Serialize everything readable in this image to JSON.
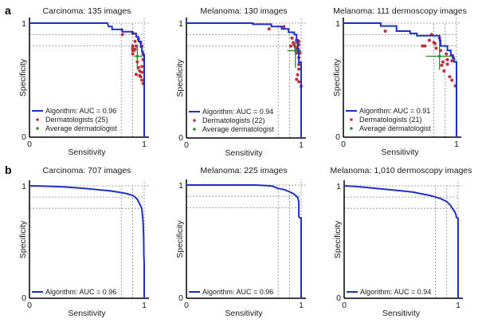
{
  "figure": {
    "panel_labels": [
      "a",
      "b"
    ],
    "colors": {
      "algorithm": "#1f30c8",
      "dermatologist": "#c0303a",
      "average": "#2a8a30",
      "reference": "#8a8a8a",
      "axis": "#000000"
    }
  },
  "chart_data": [
    {
      "type": "line",
      "row": "a",
      "title": "Carcinoma: 135 images",
      "xlabel": "Sensitivity",
      "ylabel": "Specificity",
      "xlim": [
        0,
        1
      ],
      "ylim": [
        0,
        1
      ],
      "xticks": [
        "0",
        "1"
      ],
      "yticks": [
        "0",
        "1"
      ],
      "grid": false,
      "reference_lines": {
        "sensitivity": [
          0.8,
          0.9,
          1.0
        ],
        "specificity": [
          0.8,
          0.9,
          1.0
        ]
      },
      "legend_position": "bottom-left",
      "legend": [
        "Algorithm: AUC = 0.96",
        "Dermatologists (25)",
        "Average dermatologist"
      ],
      "algorithm": {
        "name": "Algorithm: AUC = 0.96",
        "auc": 0.96,
        "points": [
          [
            0,
            1
          ],
          [
            0.68,
            1
          ],
          [
            0.69,
            0.97
          ],
          [
            0.72,
            0.97
          ],
          [
            0.72,
            0.945
          ],
          [
            0.81,
            0.945
          ],
          [
            0.81,
            0.925
          ],
          [
            0.9,
            0.925
          ],
          [
            0.9,
            0.91
          ],
          [
            0.93,
            0.91
          ],
          [
            0.93,
            0.88
          ],
          [
            0.95,
            0.88
          ],
          [
            0.95,
            0.84
          ],
          [
            0.97,
            0.84
          ],
          [
            0.97,
            0.79
          ],
          [
            0.98,
            0.79
          ],
          [
            0.98,
            0.75
          ],
          [
            0.99,
            0.75
          ],
          [
            0.99,
            0.72
          ],
          [
            1.0,
            0.72
          ],
          [
            1.0,
            0
          ]
        ]
      },
      "dermatologists": {
        "name": "Dermatologists (25)",
        "points": [
          [
            0.81,
            0.9
          ],
          [
            0.9,
            0.91
          ],
          [
            0.9,
            0.8
          ],
          [
            0.9,
            0.78
          ],
          [
            0.91,
            0.76
          ],
          [
            0.9,
            0.73
          ],
          [
            0.98,
            0.8
          ],
          [
            0.99,
            0.73
          ],
          [
            0.94,
            0.66
          ],
          [
            0.99,
            0.68
          ],
          [
            0.98,
            0.62
          ],
          [
            0.98,
            0.57
          ],
          [
            0.95,
            0.61
          ],
          [
            0.96,
            0.54
          ],
          [
            0.97,
            0.53
          ],
          [
            0.93,
            0.55
          ],
          [
            0.98,
            0.5
          ],
          [
            0.99,
            0.47
          ],
          [
            0.9,
            0.76
          ],
          [
            0.92,
            0.77
          ],
          [
            0.92,
            0.84
          ],
          [
            0.95,
            0.86
          ],
          [
            0.97,
            0.83
          ],
          [
            0.93,
            0.8
          ],
          [
            0.96,
            0.58
          ]
        ]
      },
      "average": {
        "name": "Average dermatologist",
        "sensitivity": 0.94,
        "specificity": 0.71,
        "sensitivity_range": [
          0.91,
          0.99
        ],
        "specificity_range": [
          0.59,
          0.81
        ]
      }
    },
    {
      "type": "line",
      "row": "a",
      "title": "Melanoma: 130 images",
      "xlabel": "Sensitivity",
      "ylabel": "Specificity",
      "xlim": [
        0,
        1
      ],
      "ylim": [
        0,
        1
      ],
      "xticks": [
        "0",
        "1"
      ],
      "yticks": [
        "0",
        "1"
      ],
      "grid": false,
      "reference_lines": {
        "sensitivity": [
          0.8,
          0.9,
          1.0
        ],
        "specificity": [
          0.8,
          0.9,
          1.0
        ]
      },
      "legend_position": "bottom-left",
      "legend": [
        "Algorithm: AUC = 0.94",
        "Dermatologists (22)",
        "Average dermatologist"
      ],
      "algorithm": {
        "name": "Algorithm: AUC = 0.94",
        "auc": 0.94,
        "points": [
          [
            0,
            1
          ],
          [
            0.58,
            1
          ],
          [
            0.58,
            0.99
          ],
          [
            0.74,
            0.99
          ],
          [
            0.74,
            0.97
          ],
          [
            0.83,
            0.97
          ],
          [
            0.83,
            0.95
          ],
          [
            0.89,
            0.95
          ],
          [
            0.89,
            0.92
          ],
          [
            0.94,
            0.92
          ],
          [
            0.94,
            0.9
          ],
          [
            0.96,
            0.9
          ],
          [
            0.96,
            0.85
          ],
          [
            0.97,
            0.85
          ],
          [
            0.97,
            0.78
          ],
          [
            0.98,
            0.78
          ],
          [
            0.98,
            0.66
          ],
          [
            1.0,
            0.66
          ],
          [
            1.0,
            0
          ]
        ]
      },
      "dermatologists": {
        "name": "Dermatologists (22)",
        "points": [
          [
            0.72,
            0.95
          ],
          [
            0.85,
            0.97
          ],
          [
            0.92,
            0.87
          ],
          [
            0.94,
            0.81
          ],
          [
            0.97,
            0.85
          ],
          [
            0.98,
            0.84
          ],
          [
            0.97,
            0.83
          ],
          [
            0.98,
            0.81
          ],
          [
            0.97,
            0.76
          ],
          [
            0.98,
            0.7
          ],
          [
            0.98,
            0.64
          ],
          [
            0.98,
            0.6
          ],
          [
            0.97,
            0.55
          ],
          [
            0.96,
            0.51
          ],
          [
            0.98,
            0.49
          ],
          [
            1.0,
            0.45
          ],
          [
            0.93,
            0.83
          ],
          [
            0.95,
            0.79
          ],
          [
            0.96,
            0.77
          ],
          [
            0.96,
            0.74
          ],
          [
            0.99,
            0.74
          ],
          [
            0.91,
            0.8
          ]
        ]
      },
      "average": {
        "name": "Average dermatologist",
        "sensitivity": 0.95,
        "specificity": 0.76,
        "sensitivity_range": [
          0.88,
          1.0
        ],
        "specificity_range": [
          0.61,
          0.86
        ]
      }
    },
    {
      "type": "line",
      "row": "a",
      "title": "Melanoma: 111 dermoscopy images",
      "xlabel": "Sensitivity",
      "ylabel": "Specificity",
      "xlim": [
        0,
        1
      ],
      "ylim": [
        0,
        1
      ],
      "xticks": [
        "0",
        "1"
      ],
      "yticks": [
        "0",
        "1"
      ],
      "grid": false,
      "reference_lines": {
        "sensitivity": [
          0.8,
          0.9,
          1.0
        ],
        "specificity": [
          0.8,
          0.9,
          1.0
        ]
      },
      "legend_position": "bottom-left",
      "legend": [
        "Algorithm: AUC = 0.91",
        "Dermatologists (21)",
        "Average dermatologist"
      ],
      "algorithm": {
        "name": "Algorithm: AUC = 0.91",
        "auc": 0.91,
        "points": [
          [
            0,
            1
          ],
          [
            0.33,
            1
          ],
          [
            0.33,
            0.975
          ],
          [
            0.47,
            0.975
          ],
          [
            0.47,
            0.93
          ],
          [
            0.59,
            0.93
          ],
          [
            0.59,
            0.91
          ],
          [
            0.65,
            0.91
          ],
          [
            0.65,
            0.89
          ],
          [
            0.85,
            0.89
          ],
          [
            0.85,
            0.85
          ],
          [
            0.86,
            0.85
          ],
          [
            0.86,
            0.8
          ],
          [
            0.92,
            0.8
          ],
          [
            0.92,
            0.76
          ],
          [
            0.95,
            0.76
          ],
          [
            0.95,
            0.72
          ],
          [
            0.97,
            0.72
          ],
          [
            0.97,
            0.69
          ],
          [
            0.98,
            0.69
          ],
          [
            0.98,
            0.66
          ],
          [
            1.0,
            0.66
          ],
          [
            1.0,
            0
          ]
        ]
      },
      "dermatologists": {
        "name": "Dermatologists (21)",
        "points": [
          [
            0.37,
            0.93
          ],
          [
            0.7,
            0.8
          ],
          [
            0.72,
            0.8
          ],
          [
            0.78,
            0.9
          ],
          [
            0.76,
            0.85
          ],
          [
            0.8,
            0.83
          ],
          [
            0.82,
            0.78
          ],
          [
            0.85,
            0.87
          ],
          [
            0.86,
            0.76
          ],
          [
            0.87,
            0.63
          ],
          [
            0.88,
            0.66
          ],
          [
            0.91,
            0.73
          ],
          [
            0.92,
            0.68
          ],
          [
            0.92,
            0.64
          ],
          [
            0.89,
            0.58
          ],
          [
            0.94,
            0.53
          ],
          [
            0.96,
            0.5
          ],
          [
            0.96,
            0.67
          ],
          [
            0.97,
            0.7
          ],
          [
            0.99,
            0.45
          ],
          [
            0.81,
            0.82
          ]
        ]
      },
      "average": {
        "name": "Average dermatologist",
        "sensitivity": 0.85,
        "specificity": 0.71,
        "sensitivity_range": [
          0.73,
          0.96
        ],
        "specificity_range": [
          0.59,
          0.85
        ]
      }
    },
    {
      "type": "line",
      "row": "b",
      "title": "Carcinoma: 707 images",
      "xlabel": "Sensitivity",
      "ylabel": "Specificity",
      "xlim": [
        0,
        1
      ],
      "ylim": [
        0,
        1
      ],
      "xticks": [
        "0",
        "1"
      ],
      "yticks": [
        "0",
        "1"
      ],
      "grid": false,
      "reference_lines": {
        "sensitivity": [
          0.8,
          0.9,
          1.0
        ],
        "specificity": [
          0.8,
          0.9,
          1.0
        ]
      },
      "legend_position": "bottom-left",
      "legend": [
        "Algorithm: AUC = 0.96"
      ],
      "algorithm": {
        "name": "Algorithm: AUC = 0.96",
        "auc": 0.96,
        "points": [
          [
            0,
            1
          ],
          [
            0.1,
            0.998
          ],
          [
            0.2,
            0.995
          ],
          [
            0.3,
            0.99
          ],
          [
            0.4,
            0.983
          ],
          [
            0.5,
            0.975
          ],
          [
            0.6,
            0.965
          ],
          [
            0.7,
            0.955
          ],
          [
            0.8,
            0.94
          ],
          [
            0.85,
            0.93
          ],
          [
            0.9,
            0.915
          ],
          [
            0.92,
            0.9
          ],
          [
            0.94,
            0.88
          ],
          [
            0.95,
            0.86
          ],
          [
            0.96,
            0.84
          ],
          [
            0.97,
            0.82
          ],
          [
            0.975,
            0.81
          ],
          [
            0.98,
            0.79
          ],
          [
            0.985,
            0.74
          ],
          [
            0.99,
            0.68
          ],
          [
            0.993,
            0.6
          ],
          [
            0.995,
            0.55
          ],
          [
            0.997,
            0.38
          ],
          [
            1.0,
            0.3
          ],
          [
            1.0,
            0
          ]
        ]
      }
    },
    {
      "type": "line",
      "row": "b",
      "title": "Melanoma: 225 images",
      "xlabel": "Sensitivity",
      "ylabel": "Specificity",
      "xlim": [
        0,
        1
      ],
      "ylim": [
        0,
        1
      ],
      "xticks": [
        "0",
        "1"
      ],
      "yticks": [
        "0",
        "1"
      ],
      "grid": false,
      "reference_lines": {
        "sensitivity": [
          0.8,
          0.9,
          1.0
        ],
        "specificity": [
          0.8,
          0.9,
          1.0
        ]
      },
      "legend_position": "bottom-left",
      "legend": [
        "Algorithm: AUC = 0.96"
      ],
      "algorithm": {
        "name": "Algorithm: AUC = 0.96",
        "auc": 0.96,
        "points": [
          [
            0,
            1
          ],
          [
            0.6,
            1
          ],
          [
            0.7,
            0.995
          ],
          [
            0.75,
            0.99
          ],
          [
            0.8,
            0.97
          ],
          [
            0.85,
            0.96
          ],
          [
            0.9,
            0.94
          ],
          [
            0.93,
            0.925
          ],
          [
            0.95,
            0.91
          ],
          [
            0.97,
            0.89
          ],
          [
            0.975,
            0.87
          ],
          [
            0.98,
            0.85
          ],
          [
            0.98,
            0.72
          ],
          [
            0.99,
            0.71
          ],
          [
            1.0,
            0.71
          ],
          [
            1.0,
            0
          ]
        ]
      }
    },
    {
      "type": "line",
      "row": "b",
      "title": "Melanoma: 1,010 dermoscopy images",
      "xlabel": "Sensitivity",
      "ylabel": "Specificity",
      "xlim": [
        0,
        1
      ],
      "ylim": [
        0,
        1
      ],
      "xticks": [
        "0",
        "1"
      ],
      "yticks": [
        "0",
        "1"
      ],
      "grid": false,
      "reference_lines": {
        "sensitivity": [
          0.8,
          0.9,
          1.0
        ],
        "specificity": [
          0.8,
          0.9,
          1.0
        ]
      },
      "legend_position": "bottom-left",
      "legend": [
        "Algorithm: AUC = 0.94"
      ],
      "algorithm": {
        "name": "Algorithm: AUC = 0.94",
        "auc": 0.94,
        "points": [
          [
            0,
            1
          ],
          [
            0.1,
            0.995
          ],
          [
            0.2,
            0.985
          ],
          [
            0.3,
            0.975
          ],
          [
            0.4,
            0.965
          ],
          [
            0.5,
            0.955
          ],
          [
            0.6,
            0.945
          ],
          [
            0.7,
            0.925
          ],
          [
            0.75,
            0.915
          ],
          [
            0.8,
            0.9
          ],
          [
            0.85,
            0.885
          ],
          [
            0.9,
            0.86
          ],
          [
            0.93,
            0.83
          ],
          [
            0.95,
            0.8
          ],
          [
            0.97,
            0.77
          ],
          [
            0.98,
            0.75
          ],
          [
            0.985,
            0.72
          ],
          [
            1.0,
            0.71
          ],
          [
            1.0,
            0
          ]
        ]
      }
    }
  ]
}
